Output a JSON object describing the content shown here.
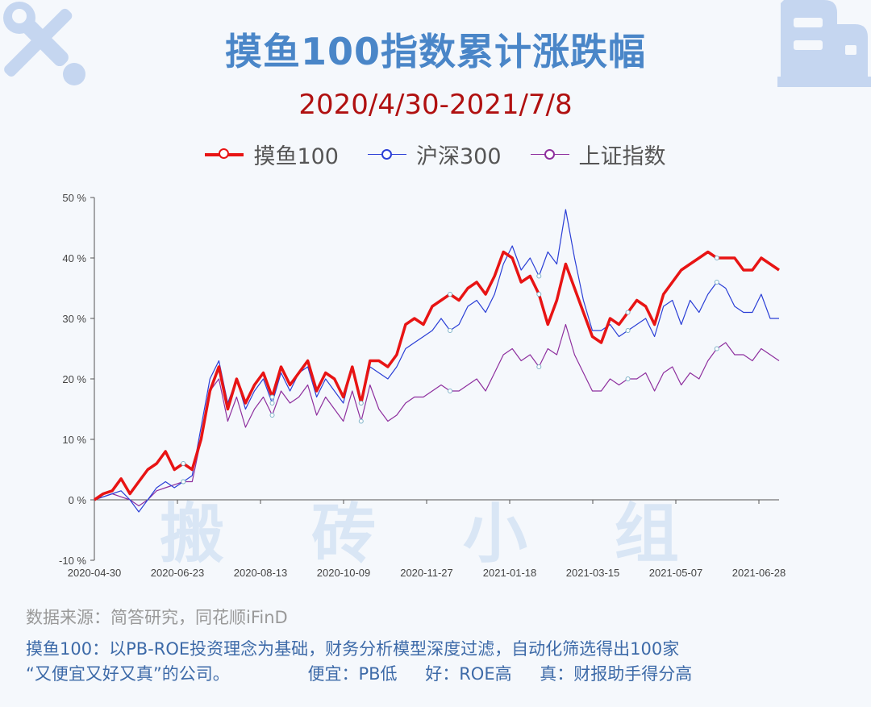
{
  "title": "摸鱼100指数累计涨跌幅",
  "subtitle": "2020/4/30-2021/7/8",
  "legend": [
    {
      "name": "摸鱼100",
      "color": "#e81414"
    },
    {
      "name": "沪深300",
      "color": "#2b3fd6"
    },
    {
      "name": "上证指数",
      "color": "#8e2f9e"
    }
  ],
  "watermark": "搬 砖 小 组",
  "footer": {
    "source": "数据来源：简答研究，同花顺iFinD",
    "line1": "摸鱼100：以PB-ROE投资理念为基础，财务分析模型深度过滤，自动化筛选得出100家",
    "line2_a": "“又便宜又好又真”的公司。",
    "line2_b": "便宜：PB低",
    "line2_c": "好：ROE高",
    "line2_d": "真：财报助手得分高"
  },
  "icons": {
    "top_left": "wrench-screwdriver-icon",
    "top_right": "building-icon"
  },
  "chart_data": {
    "type": "line",
    "y_tick_labels": [
      "50 %",
      "40 %",
      "30 %",
      "20 %",
      "10 %",
      "0 %",
      "-10 %"
    ],
    "x_tick_labels": [
      "2020-04-30",
      "2020-06-23",
      "2020-08-13",
      "2020-10-09",
      "2020-11-27",
      "2021-01-18",
      "2021-03-15",
      "2021-05-07",
      "2021-06-28"
    ],
    "ylim": [
      -10,
      50
    ],
    "grid": false,
    "legend_position": "top",
    "series": [
      {
        "name": "摸鱼100",
        "values": [
          0,
          1,
          1.5,
          3.5,
          1,
          3,
          5,
          6,
          8,
          5,
          6,
          5,
          10,
          18,
          22,
          15,
          20,
          16,
          19,
          21,
          17,
          22,
          19,
          21,
          23,
          18,
          21,
          20,
          17,
          22,
          16,
          23,
          23,
          22,
          24,
          29,
          30,
          29,
          32,
          33,
          34,
          33,
          35,
          36,
          34,
          37,
          41,
          40,
          36,
          37,
          34,
          29,
          33,
          39,
          35,
          31,
          27,
          26,
          30,
          29,
          31,
          33,
          32,
          29,
          34,
          36,
          38,
          39,
          40,
          41,
          40,
          40,
          40,
          38,
          38,
          40,
          39,
          38
        ]
      },
      {
        "name": "沪深300",
        "values": [
          0,
          0.5,
          1,
          1.5,
          0,
          -2,
          0,
          2,
          3,
          2,
          3,
          4,
          12,
          20,
          23,
          16,
          20,
          15,
          18,
          20,
          16,
          21,
          18,
          21,
          22,
          17,
          20,
          18,
          16,
          22,
          16,
          22,
          21,
          20,
          22,
          25,
          26,
          27,
          28,
          30,
          28,
          29,
          32,
          33,
          31,
          34,
          39,
          42,
          38,
          40,
          37,
          41,
          39,
          48,
          40,
          33,
          28,
          28,
          29,
          27,
          28,
          29,
          30,
          27,
          32,
          33,
          29,
          33,
          31,
          34,
          36,
          35,
          32,
          31,
          31,
          34,
          30,
          30
        ]
      },
      {
        "name": "上证指数",
        "values": [
          0,
          0.5,
          1,
          0.5,
          0,
          -1,
          0,
          1.5,
          2,
          2.5,
          3,
          3,
          10,
          18,
          20,
          13,
          17,
          12,
          15,
          17,
          14,
          18,
          16,
          17,
          19,
          14,
          17,
          15,
          13,
          18,
          13,
          19,
          15,
          13,
          14,
          16,
          17,
          17,
          18,
          19,
          18,
          18,
          19,
          20,
          18,
          21,
          24,
          25,
          23,
          24,
          22,
          25,
          24,
          29,
          24,
          21,
          18,
          18,
          20,
          19,
          20,
          20,
          21,
          18,
          21,
          22,
          19,
          21,
          20,
          23,
          25,
          26,
          24,
          24,
          23,
          25,
          24,
          23
        ]
      }
    ]
  }
}
